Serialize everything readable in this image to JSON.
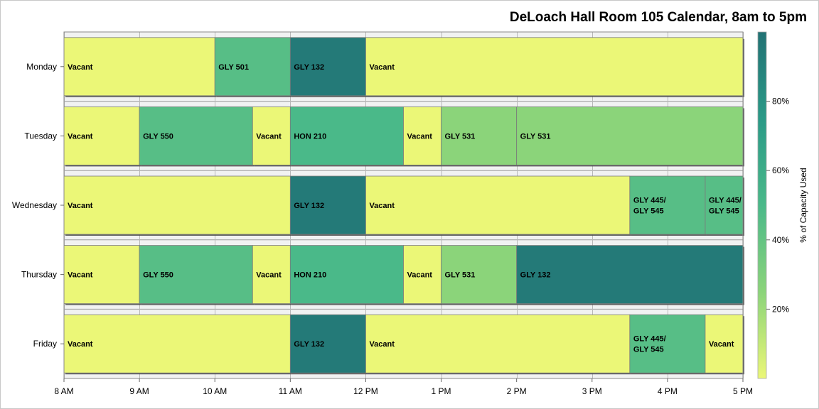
{
  "chart_data": {
    "type": "bar",
    "orientation": "horizontal",
    "title": "DeLoach Hall Room 105 Calendar, 8am to 5pm",
    "x_ticks": [
      "8 AM",
      "9 AM",
      "10 AM",
      "11 AM",
      "12 PM",
      "1 PM",
      "2 PM",
      "3 PM",
      "4 PM",
      "5 PM"
    ],
    "xlim": [
      8,
      17
    ],
    "categories": [
      "Monday",
      "Tuesday",
      "Wednesday",
      "Thursday",
      "Friday"
    ],
    "colorbar": {
      "label": "% of Capacity Used",
      "ticks": [
        "20%",
        "40%",
        "60%",
        "80%"
      ],
      "range": [
        0,
        100
      ],
      "colors": [
        "#ebf777",
        "#8bd47a",
        "#4ab989",
        "#2a9a87",
        "#227274"
      ]
    },
    "series": [
      {
        "day": "Monday",
        "segments": [
          {
            "label": "Vacant",
            "start": 8,
            "end": 10,
            "capacity": 0
          },
          {
            "label": "GLY 501",
            "start": 10,
            "end": 11,
            "capacity": 45
          },
          {
            "label": "GLY 132",
            "start": 11,
            "end": 12,
            "capacity": 95
          },
          {
            "label": "Vacant",
            "start": 12,
            "end": 17,
            "capacity": 0
          }
        ]
      },
      {
        "day": "Tuesday",
        "segments": [
          {
            "label": "Vacant",
            "start": 8,
            "end": 9,
            "capacity": 0
          },
          {
            "label": "GLY 550",
            "start": 9,
            "end": 10.5,
            "capacity": 45
          },
          {
            "label": "Vacant",
            "start": 10.5,
            "end": 11,
            "capacity": 0
          },
          {
            "label": "HON 210",
            "start": 11,
            "end": 12.5,
            "capacity": 50
          },
          {
            "label": "Vacant",
            "start": 12.5,
            "end": 13,
            "capacity": 0
          },
          {
            "label": "GLY 531",
            "start": 13,
            "end": 14,
            "capacity": 25
          },
          {
            "label": "GLY 531",
            "start": 14,
            "end": 17,
            "capacity": 25
          }
        ]
      },
      {
        "day": "Wednesday",
        "segments": [
          {
            "label": "Vacant",
            "start": 8,
            "end": 11,
            "capacity": 0
          },
          {
            "label": "GLY 132",
            "start": 11,
            "end": 12,
            "capacity": 95
          },
          {
            "label": "Vacant",
            "start": 12,
            "end": 15.5,
            "capacity": 0
          },
          {
            "label": "GLY 445/\nGLY 545",
            "start": 15.5,
            "end": 16.5,
            "capacity": 45
          },
          {
            "label": "GLY 445/\nGLY 545",
            "start": 16.5,
            "end": 17,
            "capacity": 45
          }
        ]
      },
      {
        "day": "Thursday",
        "segments": [
          {
            "label": "Vacant",
            "start": 8,
            "end": 9,
            "capacity": 0
          },
          {
            "label": "GLY 550",
            "start": 9,
            "end": 10.5,
            "capacity": 45
          },
          {
            "label": "Vacant",
            "start": 10.5,
            "end": 11,
            "capacity": 0
          },
          {
            "label": "HON 210",
            "start": 11,
            "end": 12.5,
            "capacity": 50
          },
          {
            "label": "Vacant",
            "start": 12.5,
            "end": 13,
            "capacity": 0
          },
          {
            "label": "GLY 531",
            "start": 13,
            "end": 14,
            "capacity": 25
          },
          {
            "label": "GLY 132",
            "start": 14,
            "end": 17,
            "capacity": 95
          }
        ]
      },
      {
        "day": "Friday",
        "segments": [
          {
            "label": "Vacant",
            "start": 8,
            "end": 11,
            "capacity": 0
          },
          {
            "label": "GLY 132",
            "start": 11,
            "end": 12,
            "capacity": 95
          },
          {
            "label": "Vacant",
            "start": 12,
            "end": 15.5,
            "capacity": 0
          },
          {
            "label": "GLY 445/\nGLY 545",
            "start": 15.5,
            "end": 16.5,
            "capacity": 45
          },
          {
            "label": "Vacant",
            "start": 16.5,
            "end": 17,
            "capacity": 0
          }
        ]
      }
    ],
    "grid": true
  }
}
